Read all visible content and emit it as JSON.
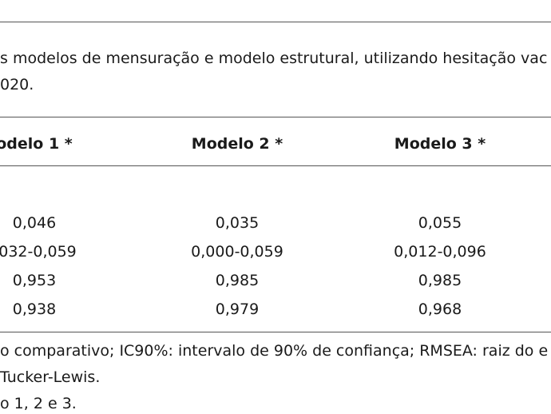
{
  "caption": {
    "line1": "s modelos de mensuração e modelo estrutural, utilizando hesitação vac",
    "line2": "020."
  },
  "table": {
    "columns": [
      "odelo 1 *",
      "Modelo 2 *",
      "Modelo 3 *"
    ],
    "rows": [
      [
        "0,046",
        "0,035",
        "0,055"
      ],
      [
        "032-0,059",
        "0,000-0,059",
        "0,012-0,096"
      ],
      [
        "0,953",
        "0,985",
        "0,985"
      ],
      [
        "0,938",
        "0,979",
        "0,968"
      ]
    ]
  },
  "footnotes": {
    "line1": "o comparativo; IC90%: intervalo de 90% de confiança; RMSEA: raiz do e",
    "line2": "Tucker-Lewis.",
    "line3": "o 1, 2 e 3."
  }
}
